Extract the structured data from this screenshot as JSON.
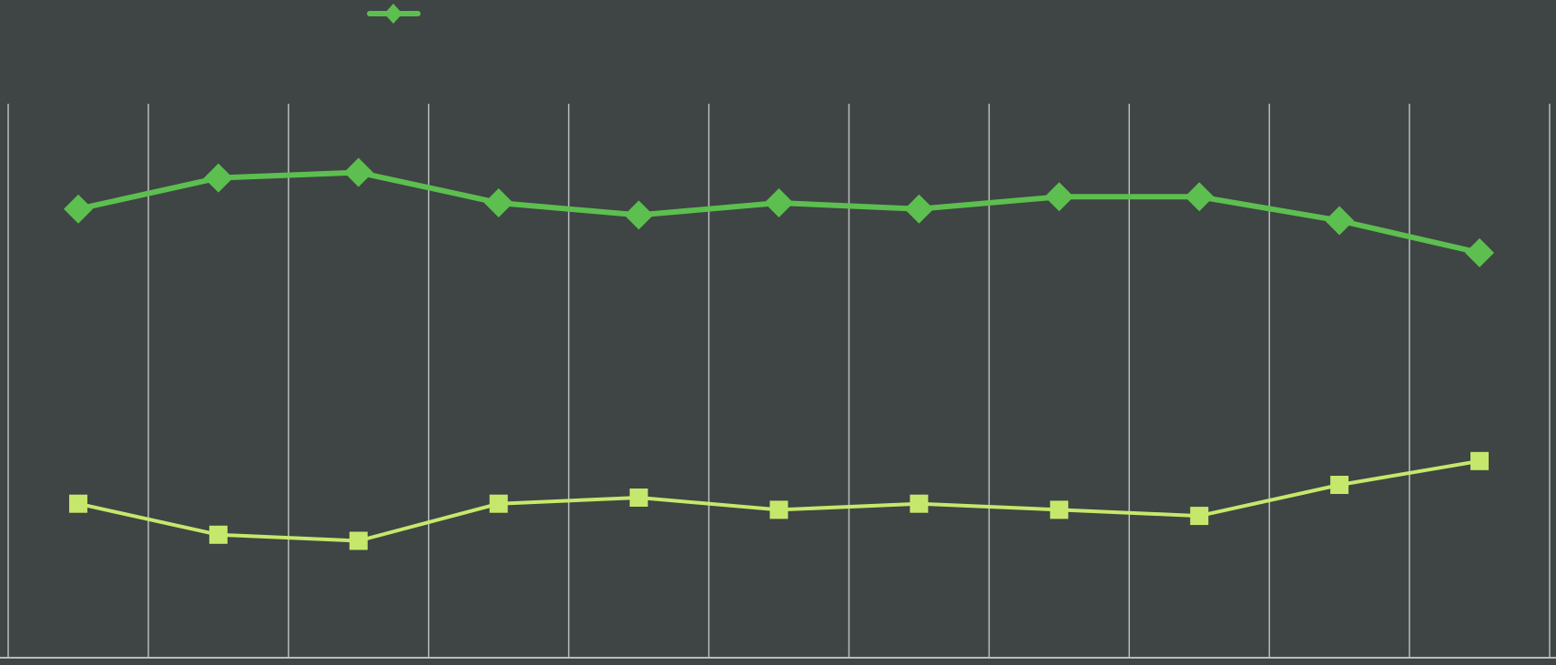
{
  "chart_data": {
    "type": "line",
    "categories": [
      null,
      null,
      null,
      null,
      null,
      null,
      null,
      null,
      null,
      null,
      null
    ],
    "series": [
      {
        "color": "#5cbf4f",
        "marker": "diamond",
        "values": [
          81,
          86.6,
          87.6,
          82.1,
          79.9,
          82.1,
          81,
          83.2,
          83.2,
          78.9,
          73.1
        ]
      },
      {
        "color": "#c5e86c",
        "marker": "square",
        "values": [
          27.8,
          22.2,
          21.1,
          27.8,
          28.9,
          26.7,
          27.8,
          26.7,
          25.6,
          31.2,
          35.5
        ]
      }
    ],
    "ylim": [
      0,
      100
    ],
    "grid": true
  }
}
